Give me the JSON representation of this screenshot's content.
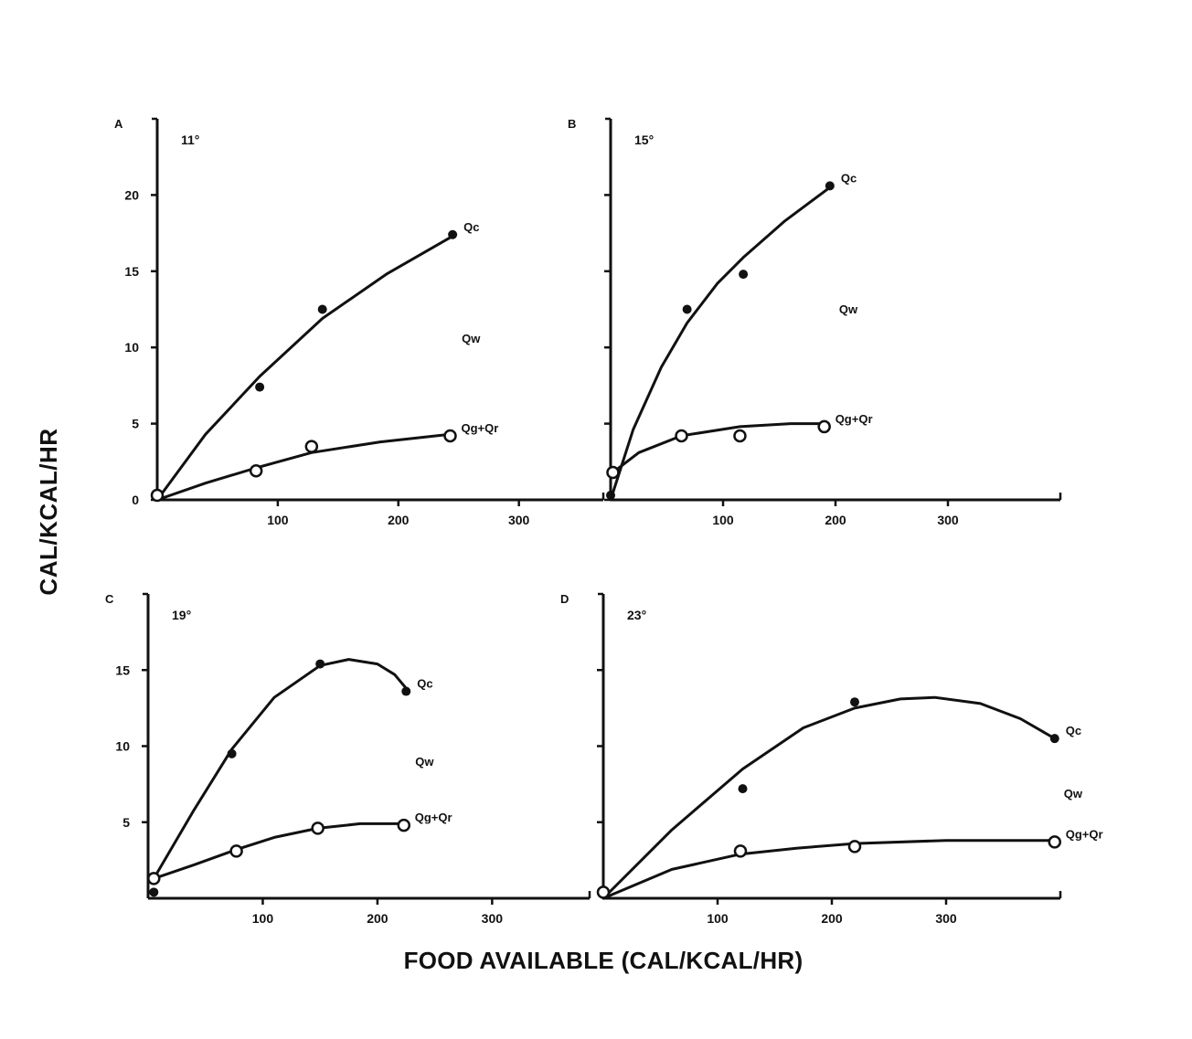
{
  "figure": {
    "ylabel": "CAL/KCAL/HR",
    "xlabel": "FOOD AVAILABLE (CAL/KCAL/HR)"
  },
  "chart_data": [
    {
      "type": "scatter",
      "panel": "A",
      "title": "11°",
      "xticks": [
        100,
        200,
        300
      ],
      "yticks": [
        0,
        5,
        10,
        15,
        20
      ],
      "ytick_labels": [
        "0",
        "5",
        "10",
        "15",
        "20"
      ],
      "xlim": [
        0,
        370
      ],
      "ylim": [
        0,
        25
      ],
      "middle_label": "Qw",
      "series": [
        {
          "name": "Qc",
          "marker": "filled",
          "points": [
            [
              0,
              0.3
            ],
            [
              85,
              7.4
            ],
            [
              137,
              12.5
            ],
            [
              245,
              17.4
            ]
          ],
          "curve": [
            [
              0,
              0
            ],
            [
              40,
              4.3
            ],
            [
              85,
              8.1
            ],
            [
              137,
              11.9
            ],
            [
              190,
              14.8
            ],
            [
              245,
              17.3
            ]
          ]
        },
        {
          "name": "Qg+Qr",
          "marker": "open",
          "points": [
            [
              0,
              0.3
            ],
            [
              82,
              1.9
            ],
            [
              128,
              3.5
            ],
            [
              243,
              4.2
            ]
          ],
          "curve": [
            [
              0,
              0
            ],
            [
              40,
              1.1
            ],
            [
              82,
              2.1
            ],
            [
              128,
              3.1
            ],
            [
              185,
              3.8
            ],
            [
              243,
              4.3
            ]
          ]
        }
      ]
    },
    {
      "type": "scatter",
      "panel": "B",
      "title": "15°",
      "xticks": [
        100,
        200,
        300
      ],
      "xtick_labels": [
        "100",
        "200",
        "300"
      ],
      "yticks": [
        0,
        5,
        10,
        15,
        20
      ],
      "xlim": [
        0,
        400
      ],
      "ylim": [
        0,
        25
      ],
      "middle_label": "Qw",
      "series": [
        {
          "name": "Qc",
          "marker": "filled",
          "points": [
            [
              0,
              0.3
            ],
            [
              68,
              12.5
            ],
            [
              118,
              14.8
            ],
            [
              195,
              20.6
            ]
          ],
          "curve": [
            [
              0,
              0
            ],
            [
              20,
              4.6
            ],
            [
              45,
              8.7
            ],
            [
              68,
              11.6
            ],
            [
              95,
              14.2
            ],
            [
              118,
              15.9
            ],
            [
              155,
              18.3
            ],
            [
              195,
              20.5
            ]
          ]
        },
        {
          "name": "Qg+Qr",
          "marker": "open",
          "points": [
            [
              2,
              1.8
            ],
            [
              63,
              4.2
            ],
            [
              115,
              4.2
            ],
            [
              190,
              4.8
            ]
          ],
          "curve": [
            [
              2,
              1.8
            ],
            [
              25,
              3.1
            ],
            [
              63,
              4.2
            ],
            [
              115,
              4.8
            ],
            [
              160,
              5.0
            ],
            [
              190,
              5.0
            ]
          ]
        }
      ]
    },
    {
      "type": "scatter",
      "panel": "C",
      "title": "19°",
      "xticks": [
        100,
        200,
        300
      ],
      "yticks": [
        5,
        10,
        15
      ],
      "ytick_labels": [
        "5",
        "10",
        "15"
      ],
      "xlim": [
        0,
        385
      ],
      "ylim": [
        0,
        20
      ],
      "middle_label": "Qw",
      "series": [
        {
          "name": "Qc",
          "marker": "filled",
          "points": [
            [
              5,
              0.4
            ],
            [
              73,
              9.5
            ],
            [
              150,
              15.4
            ],
            [
              225,
              13.6
            ]
          ],
          "curve": [
            [
              5,
              1.3
            ],
            [
              40,
              5.8
            ],
            [
              73,
              9.8
            ],
            [
              110,
              13.2
            ],
            [
              150,
              15.3
            ],
            [
              175,
              15.7
            ],
            [
              200,
              15.4
            ],
            [
              215,
              14.7
            ],
            [
              225,
              13.8
            ]
          ]
        },
        {
          "name": "Qg+Qr",
          "marker": "open",
          "points": [
            [
              5,
              1.3
            ],
            [
              77,
              3.1
            ],
            [
              148,
              4.6
            ],
            [
              223,
              4.8
            ]
          ],
          "curve": [
            [
              5,
              1.3
            ],
            [
              40,
              2.2
            ],
            [
              77,
              3.2
            ],
            [
              110,
              4.0
            ],
            [
              148,
              4.6
            ],
            [
              185,
              4.9
            ],
            [
              223,
              4.9
            ]
          ]
        }
      ]
    },
    {
      "type": "scatter",
      "panel": "D",
      "title": "23°",
      "xticks": [
        100,
        200,
        300
      ],
      "yticks": [
        5,
        10,
        15
      ],
      "xlim": [
        0,
        400
      ],
      "ylim": [
        0,
        20
      ],
      "middle_label": "Qw",
      "series": [
        {
          "name": "Qc",
          "marker": "filled",
          "points": [
            [
              0,
              0.4
            ],
            [
              122,
              7.2
            ],
            [
              220,
              12.9
            ],
            [
              395,
              10.5
            ]
          ],
          "curve": [
            [
              0,
              0
            ],
            [
              60,
              4.5
            ],
            [
              122,
              8.5
            ],
            [
              175,
              11.2
            ],
            [
              220,
              12.5
            ],
            [
              260,
              13.1
            ],
            [
              290,
              13.2
            ],
            [
              330,
              12.8
            ],
            [
              365,
              11.8
            ],
            [
              395,
              10.5
            ]
          ]
        },
        {
          "name": "Qg+Qr",
          "marker": "open",
          "points": [
            [
              0,
              0.4
            ],
            [
              120,
              3.1
            ],
            [
              220,
              3.4
            ],
            [
              395,
              3.7
            ]
          ],
          "curve": [
            [
              0,
              0
            ],
            [
              60,
              1.9
            ],
            [
              120,
              2.9
            ],
            [
              170,
              3.3
            ],
            [
              220,
              3.6
            ],
            [
              300,
              3.8
            ],
            [
              395,
              3.8
            ]
          ]
        }
      ]
    }
  ]
}
